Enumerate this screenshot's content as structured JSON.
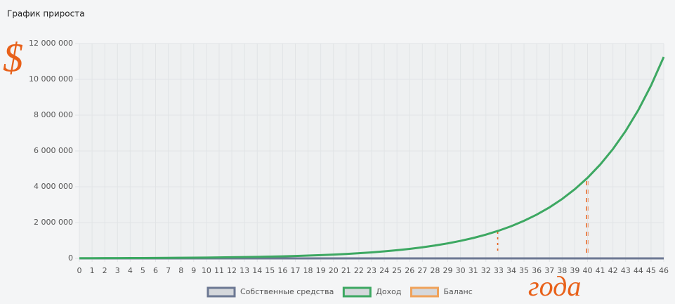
{
  "chart_data": {
    "type": "line",
    "title": "График прироста",
    "x": [
      0,
      1,
      2,
      3,
      4,
      5,
      6,
      7,
      8,
      9,
      10,
      11,
      12,
      13,
      14,
      15,
      16,
      17,
      18,
      19,
      20,
      21,
      22,
      23,
      24,
      25,
      26,
      27,
      28,
      29,
      30,
      31,
      32,
      33,
      34,
      35,
      36,
      37,
      38,
      39,
      40,
      41,
      42,
      43,
      44,
      45,
      46
    ],
    "xlim": [
      0,
      46
    ],
    "xticks": [
      0,
      1,
      2,
      3,
      4,
      5,
      6,
      7,
      8,
      9,
      10,
      11,
      12,
      13,
      14,
      15,
      16,
      17,
      18,
      19,
      20,
      21,
      22,
      23,
      24,
      25,
      26,
      27,
      28,
      29,
      30,
      31,
      32,
      33,
      34,
      35,
      36,
      37,
      38,
      39,
      40,
      41,
      42,
      43,
      44,
      45,
      46
    ],
    "ylim": [
      0,
      12000000
    ],
    "yticks": [
      0,
      {
        "value": 2000000,
        "label": "2 000 000"
      },
      {
        "value": 4000000,
        "label": "4 000 000"
      },
      {
        "value": 6000000,
        "label": "6 000 000"
      },
      {
        "value": 8000000,
        "label": "8 000 000"
      },
      {
        "value": 10000000,
        "label": "10 000 000"
      },
      {
        "value": 12000000,
        "label": "12 000 000"
      }
    ],
    "grid": true,
    "series": [
      {
        "name": "Собственные средства",
        "color": "#6c7893",
        "values": [
          0,
          0,
          0,
          0,
          0,
          0,
          0,
          0,
          0,
          0,
          0,
          0,
          0,
          0,
          0,
          0,
          0,
          0,
          0,
          0,
          0,
          0,
          0,
          0,
          0,
          0,
          0,
          0,
          0,
          0,
          0,
          0,
          0,
          0,
          0,
          0,
          0,
          0,
          0,
          0,
          0,
          0,
          0,
          0,
          0,
          0,
          0
        ]
      },
      {
        "name": "Доход",
        "color": "#3da862",
        "values": [
          10000,
          12000,
          13000,
          16000,
          18000,
          21000,
          25000,
          29000,
          34000,
          39000,
          46000,
          54000,
          62000,
          73000,
          85000,
          99000,
          115000,
          134000,
          156000,
          182000,
          212000,
          247000,
          288000,
          335000,
          391000,
          455000,
          530000,
          618000,
          720000,
          839000,
          977000,
          1138000,
          1326000,
          1545000,
          1800000,
          2097000,
          2443000,
          2846000,
          3316000,
          3863000,
          4500000,
          5242000,
          6107000,
          7115000,
          8289000,
          9657000,
          11250000
        ]
      },
      {
        "name": "Баланс",
        "color": "#f0a25a",
        "values": [
          null,
          null,
          null,
          null,
          null,
          null,
          null,
          null,
          null,
          null,
          null,
          null,
          null,
          null,
          null,
          null,
          null,
          null,
          null,
          null,
          null,
          null,
          null,
          null,
          null,
          null,
          null,
          null,
          null,
          null,
          null,
          null,
          null,
          null,
          null,
          null,
          null,
          null,
          null,
          null,
          null,
          null,
          null,
          null,
          null,
          null,
          null
        ]
      }
    ],
    "annotations": [
      "$",
      "года"
    ]
  }
}
